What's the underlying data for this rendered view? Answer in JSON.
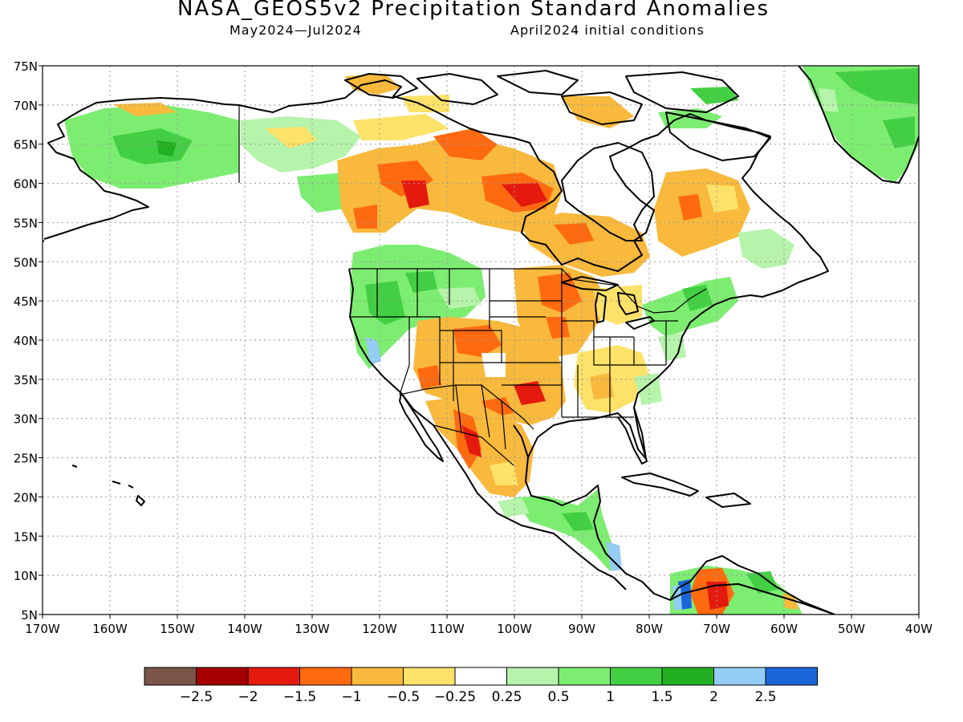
{
  "title": "NASA_GEOS5v2 Precipitation Standard Anomalies",
  "subtitle_period": "May2024—Jul2024",
  "subtitle_ic": "April2024 initial conditions",
  "map": {
    "lon_labels": [
      "170W",
      "160W",
      "150W",
      "140W",
      "130W",
      "120W",
      "110W",
      "100W",
      "90W",
      "80W",
      "70W",
      "60W",
      "50W",
      "40W"
    ],
    "lat_labels": [
      "75N",
      "70N",
      "65N",
      "60N",
      "55N",
      "50N",
      "45N",
      "40N",
      "35N",
      "30N",
      "25N",
      "20N",
      "15N",
      "10N",
      "5N"
    ],
    "anomaly_regions": [
      {
        "region": "Alaska",
        "level": 1
      },
      {
        "region": "Yukon / NW Canada",
        "level": 0.5
      },
      {
        "region": "Northwest Territories south",
        "level": -1
      },
      {
        "region": "Northern Manitoba / Hudson Bay west",
        "level": -1.5
      },
      {
        "region": "Northern Quebec / Ontario",
        "level": -1
      },
      {
        "region": "US Pacific Northwest",
        "level": 1
      },
      {
        "region": "US Southwest / Texas",
        "level": -1
      },
      {
        "region": "Northern Mexico Sierra Madre",
        "level": -1.5
      },
      {
        "region": "Upper Midwest",
        "level": -1
      },
      {
        "region": "US Southeast",
        "level": -0.5
      },
      {
        "region": "US Northeast",
        "level": 1
      },
      {
        "region": "Central America",
        "level": 1
      },
      {
        "region": "Greenland",
        "level": 1.5
      },
      {
        "region": "Northern South America",
        "level": -2
      }
    ]
  },
  "colorbar": {
    "colors": [
      "#7b5548",
      "#a50000",
      "#e41a0e",
      "#ff6a10",
      "#f8b93c",
      "#fde26a",
      "#ffffff",
      "#b6f3ab",
      "#7ded72",
      "#43cf43",
      "#22b022",
      "#93ccf5",
      "#1a66d8"
    ],
    "labels": [
      "−2.5",
      "−2",
      "−1.5",
      "−1",
      "−0.5",
      "−0.25",
      "0.25",
      "0.5",
      "1",
      "1.5",
      "2",
      "2.5"
    ]
  }
}
